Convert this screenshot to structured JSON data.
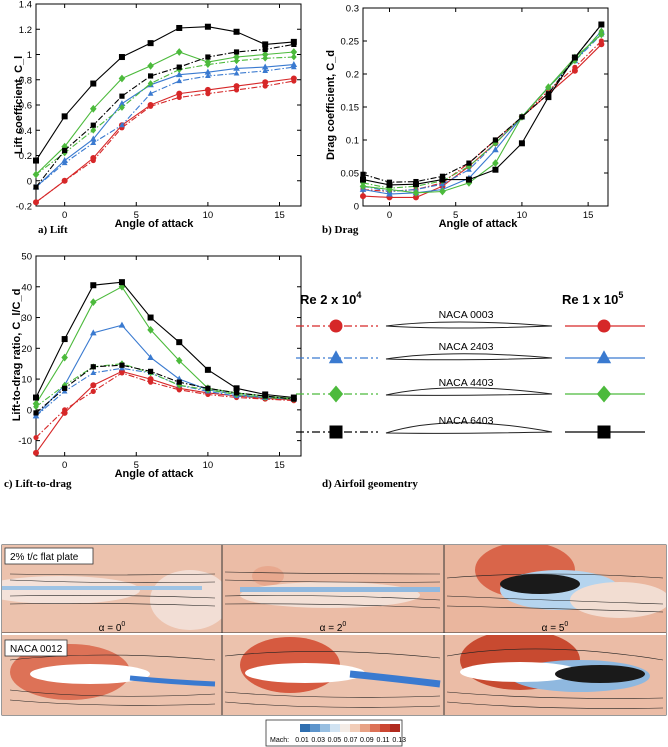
{
  "colors": {
    "naca0003": "#d62728",
    "naca2403": "#3a7ad0",
    "naca4403": "#4cba3c",
    "naca6403": "#000000"
  },
  "chart_data": [
    {
      "type": "line",
      "caption": "a) Lift",
      "xlabel": "Angle of attack",
      "ylabel": "Lift coefficient, C_l",
      "xlim": [
        -2,
        16.5
      ],
      "ylim": [
        -0.2,
        1.4
      ],
      "xticks": [
        0,
        5,
        10,
        15
      ],
      "yticks": [
        -0.2,
        0,
        0.2,
        0.4,
        0.6,
        0.8,
        1,
        1.2,
        1.4
      ],
      "x": [
        -2,
        0,
        2,
        4,
        6,
        8,
        10,
        12,
        14,
        16
      ],
      "series": [
        {
          "airfoil": "NACA 0003",
          "re": "2e4",
          "values": [
            -0.17,
            0.0,
            0.16,
            0.42,
            0.59,
            0.66,
            0.69,
            0.72,
            0.75,
            0.79
          ]
        },
        {
          "airfoil": "NACA 0003",
          "re": "1e5",
          "values": [
            -0.17,
            0.0,
            0.18,
            0.44,
            0.6,
            0.69,
            0.72,
            0.75,
            0.78,
            0.81
          ]
        },
        {
          "airfoil": "NACA 2403",
          "re": "2e4",
          "values": [
            -0.05,
            0.14,
            0.3,
            0.44,
            0.69,
            0.79,
            0.83,
            0.85,
            0.87,
            0.9
          ]
        },
        {
          "airfoil": "NACA 2403",
          "re": "1e5",
          "values": [
            -0.05,
            0.16,
            0.33,
            0.61,
            0.76,
            0.84,
            0.86,
            0.89,
            0.9,
            0.92
          ]
        },
        {
          "airfoil": "NACA 4403",
          "re": "2e4",
          "values": [
            0.05,
            0.22,
            0.4,
            0.58,
            0.77,
            0.88,
            0.92,
            0.95,
            0.97,
            0.98
          ]
        },
        {
          "airfoil": "NACA 4403",
          "re": "1e5",
          "values": [
            0.05,
            0.27,
            0.57,
            0.81,
            0.91,
            1.02,
            0.94,
            0.98,
            1.0,
            1.02
          ]
        },
        {
          "airfoil": "NACA 6403",
          "re": "2e4",
          "values": [
            -0.05,
            0.24,
            0.44,
            0.67,
            0.83,
            0.9,
            0.98,
            1.02,
            1.04,
            1.08
          ]
        },
        {
          "airfoil": "NACA 6403",
          "re": "1e5",
          "values": [
            0.16,
            0.51,
            0.77,
            0.98,
            1.09,
            1.21,
            1.22,
            1.18,
            1.08,
            1.1
          ]
        }
      ]
    },
    {
      "type": "line",
      "caption": "b) Drag",
      "xlabel": "Angle of attack",
      "ylabel": "Drag coefficient, C_d",
      "xlim": [
        -2,
        16.5
      ],
      "ylim": [
        0,
        0.3
      ],
      "xticks": [
        0,
        5,
        10,
        15
      ],
      "yticks": [
        0,
        0.05,
        0.1,
        0.15,
        0.2,
        0.25,
        0.3
      ],
      "x": [
        -2,
        0,
        2,
        4,
        6,
        8,
        10,
        12,
        14,
        16
      ],
      "series": [
        {
          "airfoil": "NACA 0003",
          "re": "2e4",
          "values": [
            0.025,
            0.022,
            0.025,
            0.035,
            0.065,
            0.1,
            0.135,
            0.175,
            0.21,
            0.25
          ]
        },
        {
          "airfoil": "NACA 0003",
          "re": "1e5",
          "values": [
            0.015,
            0.013,
            0.013,
            0.03,
            0.06,
            0.095,
            0.135,
            0.17,
            0.205,
            0.245
          ]
        },
        {
          "airfoil": "NACA 2403",
          "re": "2e4",
          "values": [
            0.03,
            0.022,
            0.025,
            0.033,
            0.055,
            0.095,
            0.135,
            0.18,
            0.22,
            0.26
          ]
        },
        {
          "airfoil": "NACA 2403",
          "re": "1e5",
          "values": [
            0.025,
            0.018,
            0.02,
            0.025,
            0.042,
            0.085,
            0.135,
            0.18,
            0.22,
            0.265
          ]
        },
        {
          "airfoil": "NACA 4403",
          "re": "2e4",
          "values": [
            0.035,
            0.027,
            0.03,
            0.038,
            0.06,
            0.095,
            0.135,
            0.18,
            0.22,
            0.265
          ]
        },
        {
          "airfoil": "NACA 4403",
          "re": "1e5",
          "values": [
            0.03,
            0.025,
            0.02,
            0.022,
            0.035,
            0.065,
            0.135,
            0.18,
            0.225,
            0.26
          ]
        },
        {
          "airfoil": "NACA 6403",
          "re": "2e4",
          "values": [
            0.048,
            0.036,
            0.037,
            0.045,
            0.065,
            0.1,
            0.135,
            0.17,
            0.225,
            0.275
          ]
        },
        {
          "airfoil": "NACA 6403",
          "re": "1e5",
          "values": [
            0.04,
            0.032,
            0.033,
            0.04,
            0.04,
            0.055,
            0.095,
            0.165,
            0.225,
            0.275
          ]
        }
      ]
    },
    {
      "type": "line",
      "caption": "c) Lift-to-drag",
      "xlabel": "Angle of attack",
      "ylabel": "Lift-to-drag ratio, C_l/C_d",
      "xlim": [
        -2,
        16.5
      ],
      "ylim": [
        -15,
        50
      ],
      "xticks": [
        0,
        5,
        10,
        15
      ],
      "yticks": [
        -10,
        0,
        10,
        20,
        30,
        40,
        50
      ],
      "x": [
        -2,
        0,
        2,
        4,
        6,
        8,
        10,
        12,
        14,
        16
      ],
      "series": [
        {
          "airfoil": "NACA 0003",
          "re": "2e4",
          "values": [
            -9,
            0,
            6,
            12,
            9,
            6.5,
            5,
            4,
            3.5,
            3
          ]
        },
        {
          "airfoil": "NACA 0003",
          "re": "1e5",
          "values": [
            -14,
            -1,
            8,
            12.5,
            10,
            7,
            5.5,
            4.5,
            3.7,
            3.3
          ]
        },
        {
          "airfoil": "NACA 2403",
          "re": "2e4",
          "values": [
            -2,
            6,
            12,
            13.5,
            12,
            8,
            6,
            4.5,
            4,
            3.5
          ]
        },
        {
          "airfoil": "NACA 2403",
          "re": "1e5",
          "values": [
            -2,
            8,
            25,
            27.5,
            17,
            10,
            6.5,
            5,
            4,
            3.5
          ]
        },
        {
          "airfoil": "NACA 4403",
          "re": "2e4",
          "values": [
            1,
            8,
            14,
            15,
            12,
            8,
            6.5,
            5,
            4,
            3.5
          ]
        },
        {
          "airfoil": "NACA 4403",
          "re": "1e5",
          "values": [
            2,
            17,
            35,
            40,
            26,
            16,
            7,
            5.5,
            4.5,
            3.7
          ]
        },
        {
          "airfoil": "NACA 6403",
          "re": "2e4",
          "values": [
            -1,
            7,
            14,
            14.5,
            12.5,
            9,
            7,
            5.5,
            4.5,
            3.5
          ]
        },
        {
          "airfoil": "NACA 6403",
          "re": "1e5",
          "values": [
            4,
            23,
            40.5,
            41.5,
            30,
            22,
            13,
            7,
            5,
            4
          ]
        }
      ]
    }
  ],
  "legend": {
    "caption": "d) Airfoil geomentry",
    "re_left_base": "Re 2 x 10",
    "re_left_exp": "4",
    "re_right_base": "Re 1 x 10",
    "re_right_exp": "5",
    "rows": [
      {
        "label": "NACA 0003",
        "marker": "circle",
        "color": "#d62728"
      },
      {
        "label": "NACA 2403",
        "marker": "triangle",
        "color": "#3a7ad0"
      },
      {
        "label": "NACA 4403",
        "marker": "diamond",
        "color": "#4cba3c"
      },
      {
        "label": "NACA 6403",
        "marker": "square",
        "color": "#000000"
      }
    ]
  },
  "cfd": {
    "row1_label": "2% t/c flat plate",
    "row2_label": "NACA 0012",
    "alpha_labels": [
      {
        "base": "α = 0",
        "exp": "0"
      },
      {
        "base": "α = 2",
        "exp": "0"
      },
      {
        "base": "α = 5",
        "exp": "0"
      }
    ],
    "colorbar_title": "Mach:",
    "colorbar_ticks": [
      "0.01",
      "0.03",
      "0.05",
      "0.07",
      "0.09",
      "0.11",
      "0.13"
    ]
  }
}
